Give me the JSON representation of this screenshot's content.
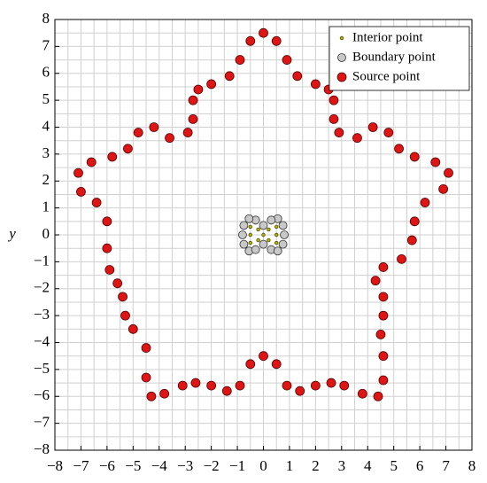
{
  "chart_data": {
    "type": "scatter",
    "y_label": "y",
    "xlim": [
      -8,
      8
    ],
    "ylim": [
      -8,
      8
    ],
    "xticks": [
      {
        "value": -8,
        "label": "−8"
      },
      {
        "value": -7,
        "label": "−7"
      },
      {
        "value": -6,
        "label": "−6"
      },
      {
        "value": -5,
        "label": "−5"
      },
      {
        "value": -4,
        "label": "−4"
      },
      {
        "value": -3,
        "label": "−3"
      },
      {
        "value": -2,
        "label": "−2"
      },
      {
        "value": -1,
        "label": "−1"
      },
      0,
      1,
      2,
      3,
      4,
      5,
      6,
      7,
      8
    ],
    "yticks": [
      {
        "value": -8,
        "label": "−8"
      },
      {
        "value": -7,
        "label": "−7"
      },
      {
        "value": -6,
        "label": "−6"
      },
      {
        "value": -5,
        "label": "−5"
      },
      {
        "value": -4,
        "label": "−4"
      },
      {
        "value": -3,
        "label": "−3"
      },
      {
        "value": -2,
        "label": "−2"
      },
      {
        "value": -1,
        "label": "−1"
      },
      0,
      1,
      2,
      3,
      4,
      5,
      6,
      7,
      8
    ],
    "xminorticks": [
      -7.5,
      -6.5,
      -5.5,
      -4.5,
      -3.5,
      -2.5,
      -1.5,
      -0.5,
      0.5,
      1.5,
      2.5,
      3.5,
      4.5,
      5.5,
      6.5,
      7.5
    ],
    "yminorticks": [
      -7.5,
      -6.5,
      -5.5,
      -4.5,
      -3.5,
      -2.5,
      -1.5,
      -0.5,
      0.5,
      1.5,
      2.5,
      3.5,
      4.5,
      5.5,
      6.5,
      7.5
    ],
    "grid": true,
    "legend": "upper right",
    "series": [
      {
        "name": "Interior point",
        "color": "#b5b800",
        "edgecolor": "#4a4a00",
        "x": [
          -0.5,
          -0.5,
          -0.5,
          -0.2,
          -0.2,
          0,
          0.2,
          0.2,
          0.5,
          0.5,
          0.5
        ],
        "y": [
          0.3,
          0,
          -0.3,
          0.2,
          -0.2,
          0,
          0.2,
          -0.2,
          0.3,
          0,
          -0.3
        ]
      },
      {
        "name": "Boundary point",
        "color": "#c8c8c8",
        "edgecolor": "#333333",
        "x": [
          0.8,
          0.75,
          0.55,
          0.3,
          0,
          -0.3,
          -0.55,
          -0.75,
          -0.8,
          -0.75,
          -0.55,
          -0.3,
          0,
          0.3,
          0.55,
          0.75
        ],
        "y": [
          0,
          0.35,
          0.6,
          0.55,
          0.35,
          0.55,
          0.6,
          0.35,
          0,
          -0.35,
          -0.6,
          -0.55,
          -0.35,
          -0.55,
          -0.6,
          -0.35
        ]
      },
      {
        "name": "Source point",
        "color": "#dd1515",
        "edgecolor": "#5a0000",
        "x": [
          0,
          0.5,
          0.9,
          1.3,
          2.0,
          2.5,
          2.7,
          2.7,
          2.9,
          3.6,
          4.2,
          4.8,
          5.2,
          5.8,
          6.6,
          7.1,
          6.9,
          6.2,
          5.8,
          5.7,
          5.3,
          4.6,
          4.3,
          4.6,
          4.6,
          4.5,
          4.6,
          4.6,
          4.4,
          3.8,
          3.1,
          2.6,
          2.0,
          1.4,
          0.9,
          0.5,
          0,
          -0.5,
          -0.9,
          -1.4,
          -2.0,
          -2.6,
          -3.1,
          -3.8,
          -4.3,
          -4.5,
          -4.5,
          -5.0,
          -5.3,
          -5.4,
          -5.6,
          -5.9,
          -6.0,
          -6.0,
          -6.4,
          -7.0,
          -7.1,
          -6.6,
          -5.8,
          -5.2,
          -4.8,
          -4.2,
          -3.6,
          -2.9,
          -2.7,
          -2.7,
          -2.5,
          -2.0,
          -1.3,
          -0.9,
          -0.5
        ],
        "y": [
          7.5,
          7.2,
          6.5,
          5.9,
          5.6,
          5.4,
          5.0,
          4.3,
          3.8,
          3.6,
          4.0,
          3.8,
          3.2,
          2.9,
          2.7,
          2.3,
          1.7,
          1.2,
          0.5,
          -0.2,
          -0.9,
          -1.2,
          -1.7,
          -2.3,
          -3.0,
          -3.7,
          -4.5,
          -5.4,
          -6.0,
          -5.9,
          -5.6,
          -5.5,
          -5.6,
          -5.8,
          -5.6,
          -4.8,
          -4.5,
          -4.8,
          -5.6,
          -5.8,
          -5.6,
          -5.5,
          -5.6,
          -5.9,
          -6.0,
          -5.3,
          -4.2,
          -3.5,
          -3.0,
          -2.3,
          -1.8,
          -1.3,
          -0.5,
          0.5,
          1.2,
          1.6,
          2.3,
          2.7,
          2.9,
          3.2,
          3.8,
          4.0,
          3.6,
          3.8,
          4.3,
          5.0,
          5.4,
          5.6,
          5.9,
          6.5,
          7.2
        ]
      }
    ]
  }
}
